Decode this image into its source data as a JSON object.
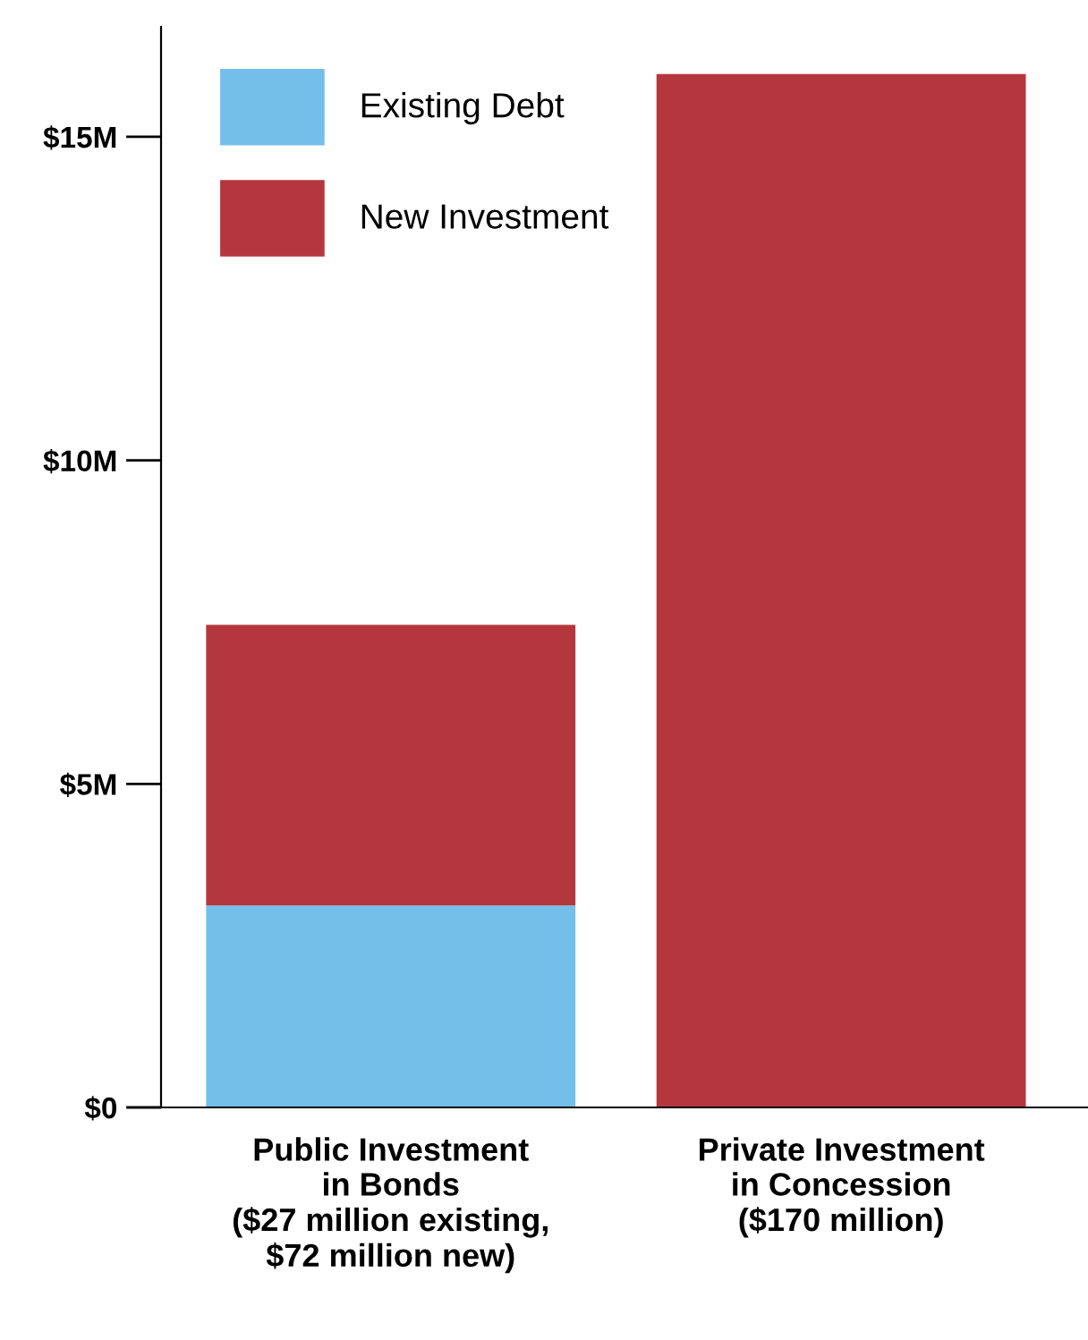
{
  "chart_data": {
    "type": "bar",
    "stacked": true,
    "categories": [
      "Public Investment\nin Bonds\n($27 million existing,\n$72 million new)",
      "Private Investment\nin Concession\n($170 million)"
    ],
    "series": [
      {
        "name": "Existing Debt",
        "color": "#74bfe9",
        "values": [
          3.12,
          null
        ]
      },
      {
        "name": "New Investment",
        "color": "#b5373e",
        "values": [
          4.34,
          15.97
        ]
      }
    ],
    "ylim": [
      0,
      16.7
    ],
    "yticks": [
      {
        "value": 0,
        "label": "$0"
      },
      {
        "value": 5,
        "label": "$5M"
      },
      {
        "value": 10,
        "label": "$10M"
      },
      {
        "value": 15,
        "label": "$15M"
      }
    ],
    "grid": false,
    "legend": "top left"
  }
}
